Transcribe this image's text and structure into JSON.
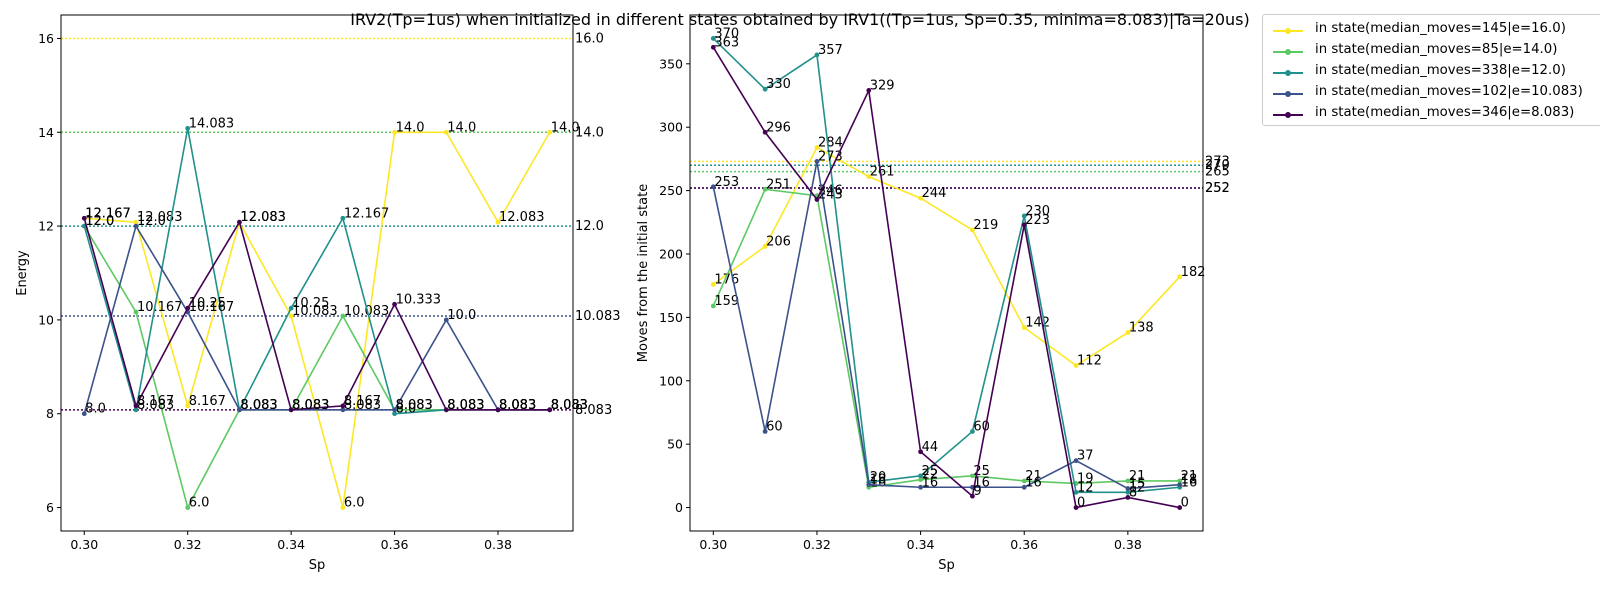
{
  "title": "IRV2(Tp=1us) when initialized in different states obtained by IRV1((Tp=1us, Sp=0.35, minima=8.083)|Ta=20us)",
  "colors": [
    "#fde725",
    "#5ec962",
    "#21918c",
    "#3b528b",
    "#440154"
  ],
  "legend": {
    "entries": [
      "in state(median_moves=145|e=16.0)",
      "in state(median_moves=85|e=14.0)",
      "in state(median_moves=338|e=12.0)",
      "in state(median_moves=102|e=10.083)",
      "in state(median_moves=346|e=8.083)"
    ]
  },
  "chart_data": [
    {
      "type": "line",
      "xlabel": "Sp",
      "ylabel": "Energy",
      "x": [
        0.3,
        0.31,
        0.32,
        0.33,
        0.34,
        0.35,
        0.36,
        0.37,
        0.38,
        0.39
      ],
      "xlim": [
        0.2955,
        0.3945
      ],
      "ylim": [
        5.5,
        16.5
      ],
      "xticks": [
        "0.30",
        "0.32",
        "0.34",
        "0.36",
        "0.38"
      ],
      "yticks": [
        "6",
        "8",
        "10",
        "12",
        "14",
        "16"
      ],
      "series": [
        {
          "name": "in state(median_moves=145|e=16.0)",
          "values": [
            12.167,
            12.083,
            8.167,
            12.083,
            10.083,
            6.0,
            14.0,
            14.0,
            12.083,
            14.0
          ],
          "labels": [
            "12.167",
            "12.083",
            "8.167",
            "12.083",
            "10.083",
            "6.0",
            "14.0",
            "14.0",
            "12.083",
            "14.0"
          ]
        },
        {
          "name": "in state(median_moves=85|e=14.0)",
          "values": [
            12.0,
            10.167,
            6.0,
            8.083,
            8.083,
            10.083,
            8.083,
            8.083,
            8.083,
            8.083
          ],
          "labels": [
            "12.0",
            "10.167",
            "6.0",
            "8.083",
            "8.083",
            "10.083",
            "8.083",
            "8.083",
            "8.083",
            "8.083"
          ]
        },
        {
          "name": "in state(median_moves=338|e=12.0)",
          "values": [
            12.0,
            8.083,
            14.083,
            8.083,
            10.25,
            12.167,
            8.0,
            8.083,
            8.083,
            8.083
          ],
          "labels": [
            "12.0",
            "8.083",
            "14.083",
            "8.083",
            "10.25",
            "12.167",
            "8.0",
            "8.083",
            "8.083",
            "8.083"
          ]
        },
        {
          "name": "in state(median_moves=102|e=10.083)",
          "values": [
            8.0,
            12.0,
            10.167,
            8.083,
            8.083,
            8.083,
            8.083,
            10.0,
            8.083,
            8.083
          ],
          "labels": [
            "8.0",
            "12.0",
            "10.167",
            "8.083",
            "8.083",
            "8.083",
            "8.083",
            "10.0",
            "8.083",
            "8.083"
          ]
        },
        {
          "name": "in state(median_moves=346|e=8.083)",
          "values": [
            12.167,
            8.167,
            10.25,
            12.083,
            8.083,
            8.167,
            10.333,
            8.083,
            8.083,
            8.083
          ],
          "labels": [
            "12.167",
            "8.167",
            "10.25",
            "12.083",
            "8.083",
            "8.167",
            "10.333",
            "8.083",
            "8.083",
            "8.083"
          ]
        }
      ],
      "hlines": [
        {
          "value": 16.0,
          "label": "16.0",
          "series": 0
        },
        {
          "value": 14.0,
          "label": "14.0",
          "series": 1
        },
        {
          "value": 12.0,
          "label": "12.0",
          "series": 2
        },
        {
          "value": 10.083,
          "label": "10.083",
          "series": 3
        },
        {
          "value": 8.083,
          "label": "8.083",
          "series": 4
        }
      ]
    },
    {
      "type": "line",
      "xlabel": "Sp",
      "ylabel": "Moves from the initial state",
      "x": [
        0.3,
        0.31,
        0.32,
        0.33,
        0.34,
        0.35,
        0.36,
        0.37,
        0.38,
        0.39
      ],
      "xlim": [
        0.2955,
        0.3945
      ],
      "ylim": [
        -18.5,
        388.5
      ],
      "xticks": [
        "0.30",
        "0.32",
        "0.34",
        "0.36",
        "0.38"
      ],
      "yticks": [
        "0",
        "50",
        "100",
        "150",
        "200",
        "250",
        "300",
        "350"
      ],
      "series": [
        {
          "name": "in state(median_moves=145|e=16.0)",
          "values": [
            176,
            206,
            284,
            261,
            244,
            219,
            142,
            112,
            138,
            182
          ]
        },
        {
          "name": "in state(median_moves=85|e=14.0)",
          "values": [
            159,
            251,
            246,
            16,
            22,
            25,
            21,
            19,
            21,
            21
          ]
        },
        {
          "name": "in state(median_moves=338|e=12.0)",
          "values": [
            370,
            330,
            357,
            20,
            25,
            60,
            230,
            12,
            12,
            16
          ]
        },
        {
          "name": "in state(median_moves=102|e=10.083)",
          "values": [
            253,
            60,
            273,
            18,
            16,
            16,
            16,
            37,
            15,
            18
          ]
        },
        {
          "name": "in state(median_moves=346|e=8.083)",
          "values": [
            363,
            296,
            243,
            329,
            44,
            9,
            223,
            0,
            8,
            0
          ]
        }
      ],
      "hlines": [
        {
          "value": 273,
          "label": "273",
          "series": 0
        },
        {
          "value": 265,
          "label": "265",
          "series": 1
        },
        {
          "value": 270,
          "label": "270",
          "series": 2
        },
        {
          "value": 252,
          "label": "252",
          "series": 3
        },
        {
          "value": 252,
          "label": "252",
          "series": 4
        }
      ]
    }
  ]
}
